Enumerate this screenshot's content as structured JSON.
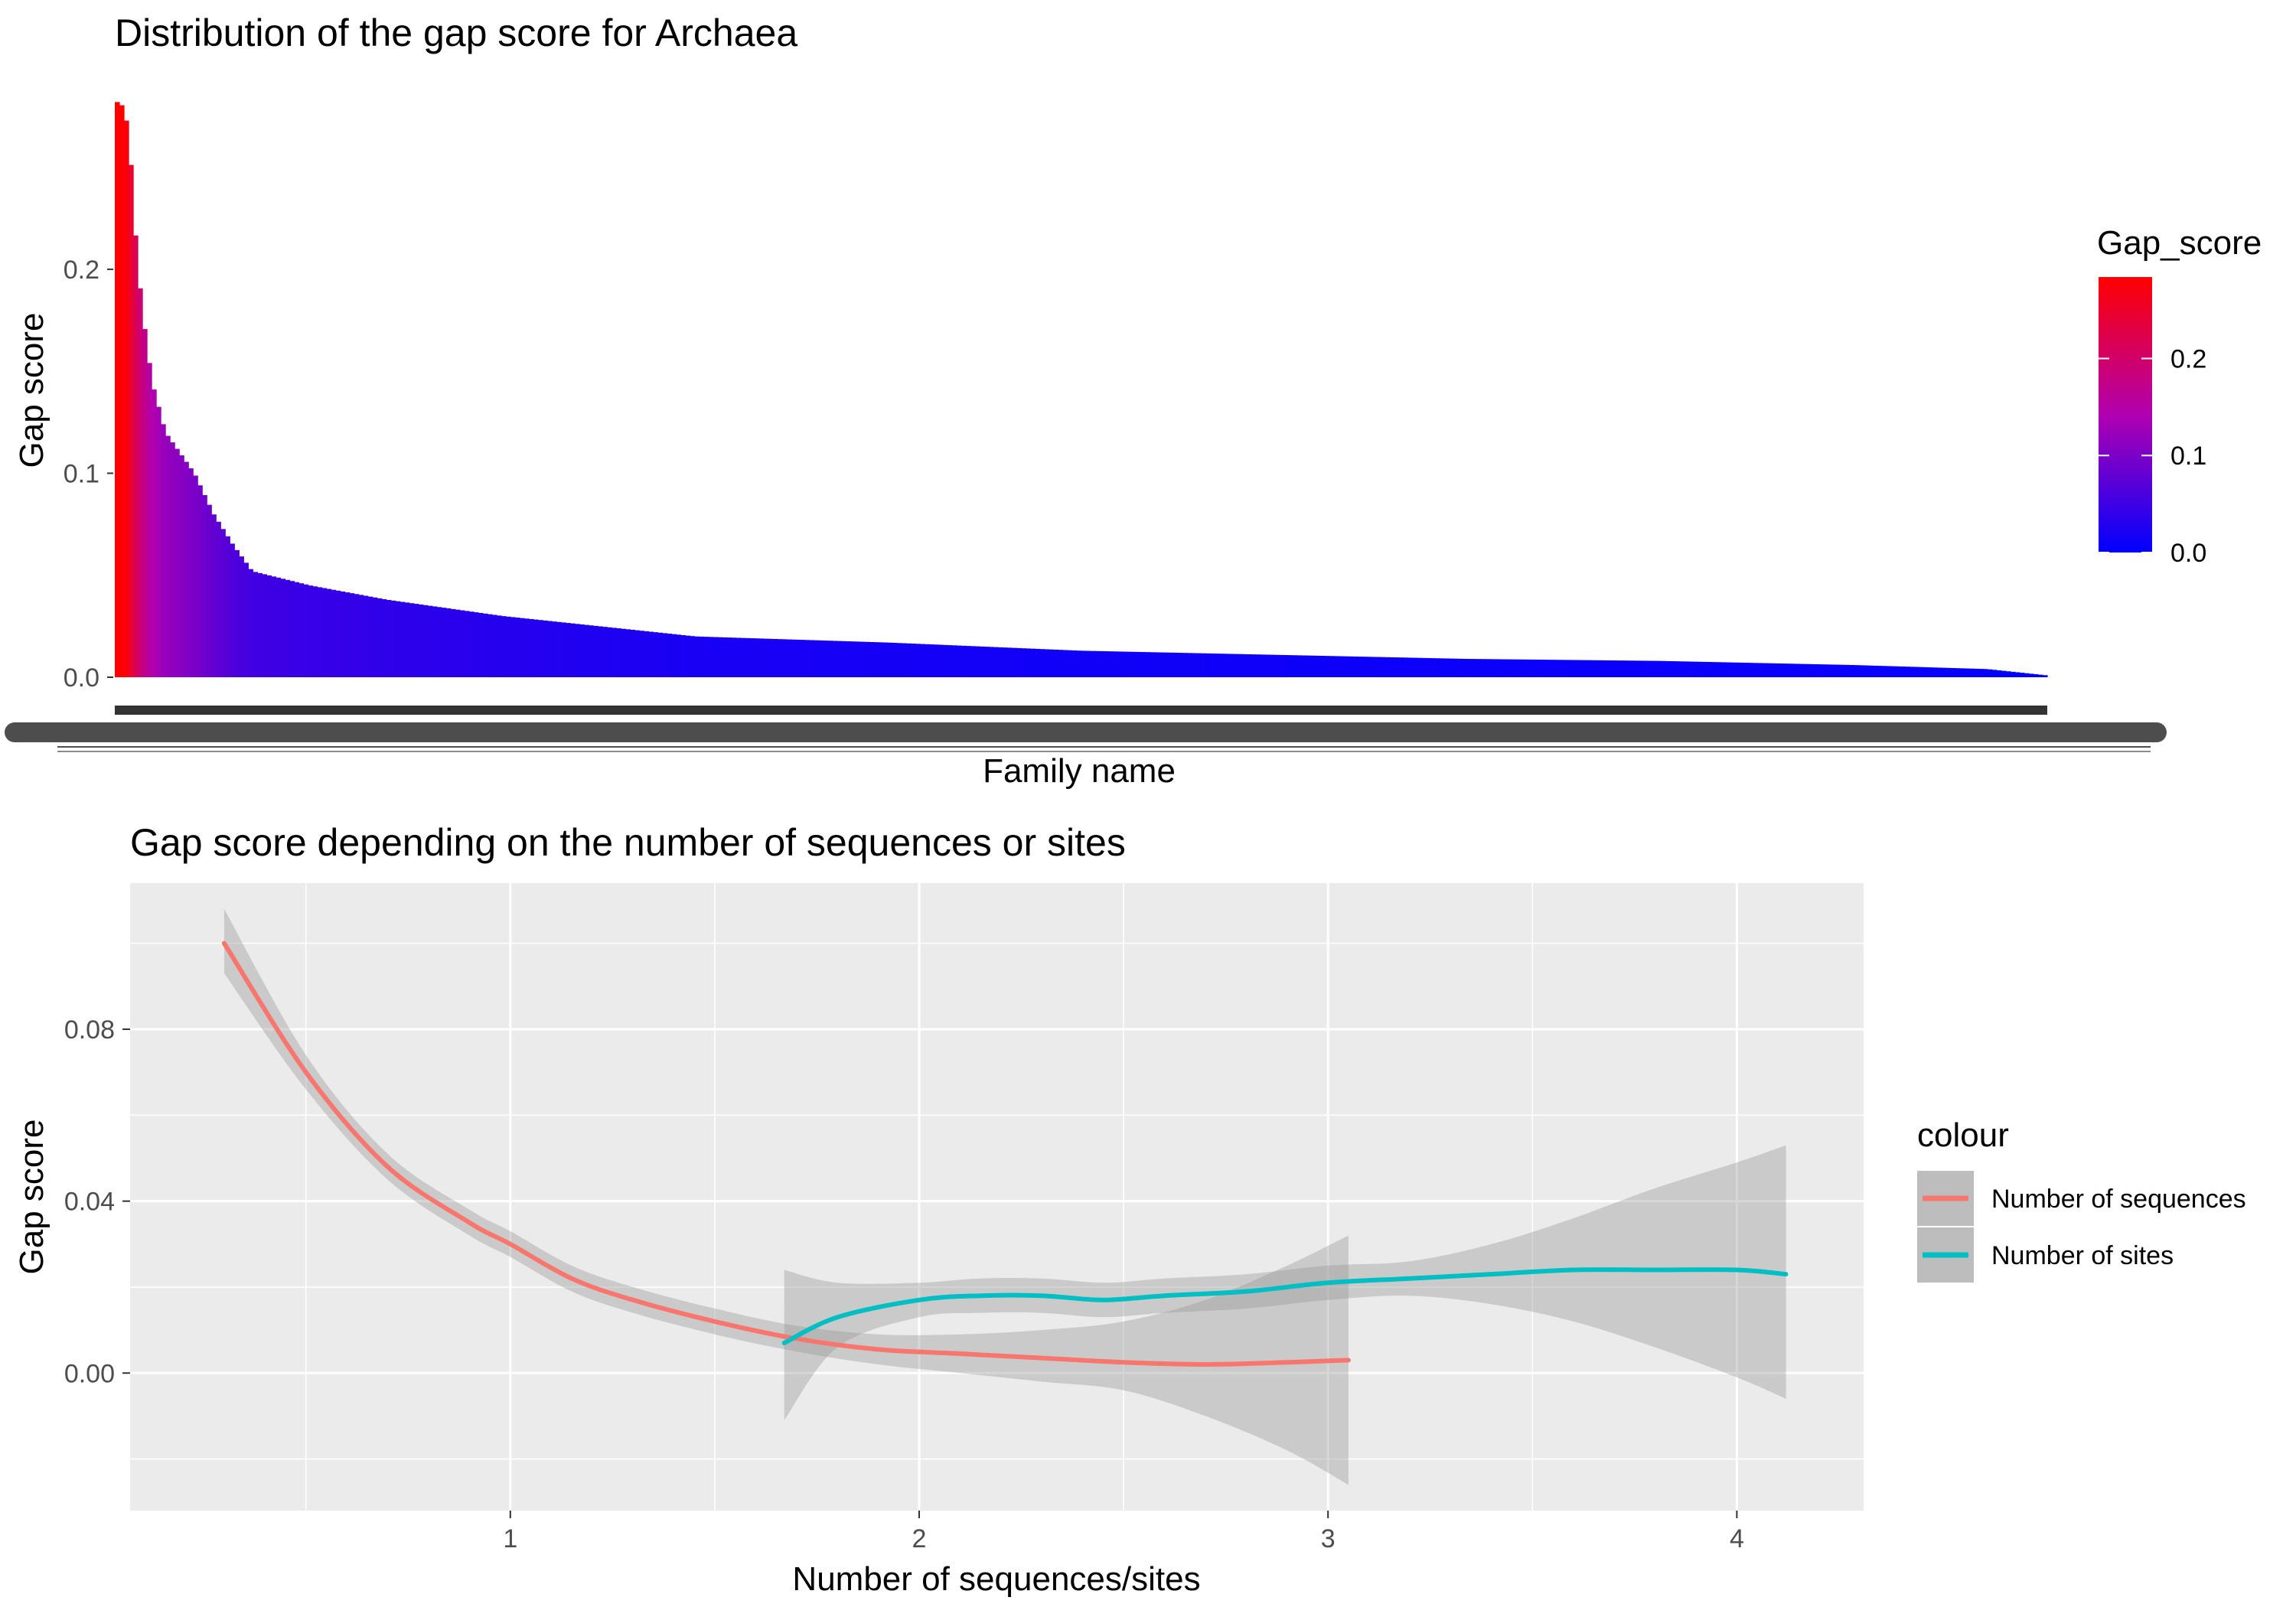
{
  "chart_data": [
    {
      "type": "bar",
      "title": "Distribution of the gap score for Archaea",
      "xlabel": "Family name",
      "ylabel": "Gap score",
      "ylim": [
        0,
        0.284
      ],
      "y_ticks": [
        "0.0",
        "0.1",
        "0.2"
      ],
      "x_tick_labels_overplotted": true,
      "grid": false,
      "legend": {
        "title": "Gap_score",
        "type": "colorbar",
        "position": "right",
        "ticks": [
          "0.0",
          "0.1",
          "0.2"
        ],
        "low_color": "#0000ff",
        "high_color": "#ff0000",
        "range": [
          0,
          0.284
        ]
      },
      "bar_count": 420,
      "sorted_values_description_points": [
        {
          "rank_fraction": 0.0,
          "value": 0.282
        },
        {
          "rank_fraction": 0.003,
          "value": 0.28
        },
        {
          "rank_fraction": 0.006,
          "value": 0.268
        },
        {
          "rank_fraction": 0.01,
          "value": 0.21
        },
        {
          "rank_fraction": 0.013,
          "value": 0.18
        },
        {
          "rank_fraction": 0.018,
          "value": 0.145
        },
        {
          "rank_fraction": 0.025,
          "value": 0.12
        },
        {
          "rank_fraction": 0.04,
          "value": 0.1
        },
        {
          "rank_fraction": 0.05,
          "value": 0.08
        },
        {
          "rank_fraction": 0.06,
          "value": 0.065
        },
        {
          "rank_fraction": 0.07,
          "value": 0.052
        },
        {
          "rank_fraction": 0.1,
          "value": 0.045
        },
        {
          "rank_fraction": 0.14,
          "value": 0.038
        },
        {
          "rank_fraction": 0.2,
          "value": 0.03
        },
        {
          "rank_fraction": 0.3,
          "value": 0.02
        },
        {
          "rank_fraction": 0.4,
          "value": 0.017
        },
        {
          "rank_fraction": 0.5,
          "value": 0.013
        },
        {
          "rank_fraction": 0.6,
          "value": 0.011
        },
        {
          "rank_fraction": 0.7,
          "value": 0.009
        },
        {
          "rank_fraction": 0.8,
          "value": 0.008
        },
        {
          "rank_fraction": 0.9,
          "value": 0.006
        },
        {
          "rank_fraction": 0.97,
          "value": 0.004
        },
        {
          "rank_fraction": 1.0,
          "value": 0.001
        }
      ]
    },
    {
      "type": "line",
      "title": "Gap score depending on the number of sequences or sites",
      "xlabel": "Number of sequences/sites",
      "ylabel": "Gap score",
      "xlim": [
        0.07,
        4.31
      ],
      "ylim": [
        -0.032,
        0.114
      ],
      "x_ticks": [
        1,
        2,
        3,
        4
      ],
      "y_ticks": [
        0.0,
        0.04,
        0.08
      ],
      "y_tick_labels": [
        "0.00",
        "0.04",
        "0.08"
      ],
      "grid": true,
      "panel_background": "#ebebeb",
      "legend": {
        "title": "colour",
        "position": "right"
      },
      "series": [
        {
          "name": "Number of sequences",
          "color": "#f8766d",
          "x": [
            0.3,
            0.5,
            0.7,
            0.9,
            1.0,
            1.15,
            1.3,
            1.5,
            1.7,
            1.9,
            2.1,
            2.3,
            2.5,
            2.7,
            2.9,
            3.05
          ],
          "y": [
            0.1,
            0.07,
            0.048,
            0.035,
            0.03,
            0.022,
            0.017,
            0.012,
            0.008,
            0.0055,
            0.0045,
            0.0035,
            0.0025,
            0.002,
            0.0025,
            0.003
          ],
          "ci_low": [
            0.093,
            0.066,
            0.045,
            0.032,
            0.027,
            0.019,
            0.014,
            0.009,
            0.005,
            0.002,
            0.0,
            -0.002,
            -0.004,
            -0.01,
            -0.018,
            -0.026
          ],
          "ci_high": [
            0.108,
            0.074,
            0.051,
            0.038,
            0.033,
            0.025,
            0.02,
            0.015,
            0.011,
            0.009,
            0.009,
            0.01,
            0.012,
            0.017,
            0.025,
            0.032
          ]
        },
        {
          "name": "Number of sites",
          "color": "#00bfc4",
          "x": [
            1.67,
            1.8,
            2.0,
            2.15,
            2.3,
            2.45,
            2.6,
            2.8,
            3.0,
            3.2,
            3.4,
            3.6,
            3.8,
            4.0,
            4.12
          ],
          "y": [
            0.007,
            0.013,
            0.017,
            0.018,
            0.018,
            0.017,
            0.018,
            0.019,
            0.021,
            0.022,
            0.023,
            0.024,
            0.024,
            0.024,
            0.023
          ],
          "ci_low": [
            -0.011,
            0.006,
            0.013,
            0.014,
            0.014,
            0.013,
            0.014,
            0.015,
            0.017,
            0.018,
            0.016,
            0.012,
            0.006,
            -0.001,
            -0.006
          ],
          "ci_high": [
            0.024,
            0.021,
            0.021,
            0.022,
            0.022,
            0.021,
            0.022,
            0.023,
            0.025,
            0.026,
            0.03,
            0.036,
            0.043,
            0.049,
            0.053
          ]
        }
      ]
    }
  ]
}
